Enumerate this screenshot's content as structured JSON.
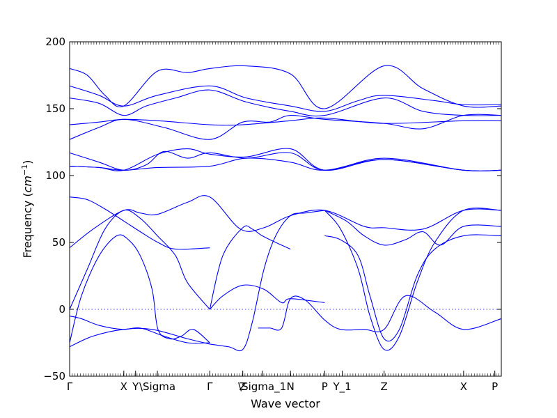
{
  "chart_data": {
    "type": "line",
    "xlabel": "Wave vector",
    "ylabel": "Frequency",
    "ylabel_unit_base": "cm",
    "ylabel_unit_exp": "−1",
    "ylim": [
      -50,
      200
    ],
    "yticks": [
      "−50",
      "0",
      "50",
      "100",
      "150",
      "200"
    ],
    "ytick_values": [
      -50,
      0,
      50,
      100,
      150,
      200
    ],
    "xlim": [
      0,
      7.33
    ],
    "xticks": [
      {
        "label": "Γ",
        "x": 0.0
      },
      {
        "label": "X",
        "x": 0.92
      },
      {
        "label": "Y",
        "x": 1.12
      },
      {
        "label": "\\Sigma",
        "x": 1.49
      },
      {
        "label": "Γ",
        "x": 2.38
      },
      {
        "label": "Z",
        "x": 2.94
      },
      {
        "label": "\\Sigma_1",
        "x": 3.27
      },
      {
        "label": "N",
        "x": 3.75
      },
      {
        "label": "P",
        "x": 4.33
      },
      {
        "label": "Y_1",
        "x": 4.63
      },
      {
        "label": "Z",
        "x": 5.34
      },
      {
        "label": "X",
        "x": 6.69
      },
      {
        "label": "P",
        "x": 7.22
      }
    ],
    "grid": false,
    "reference_line": {
      "y": 0,
      "style": "dotted"
    },
    "line_color": "#0000ff",
    "series": [
      {
        "x": [
          0,
          0.3,
          0.6,
          0.92,
          1.49,
          2.0,
          2.38,
          3.0,
          3.75,
          4.33,
          5.34,
          6.0,
          6.69,
          7.33
        ],
        "y": [
          180,
          175,
          160,
          152,
          178,
          177,
          180,
          182,
          176,
          150,
          182,
          165,
          152,
          152
        ]
      },
      {
        "x": [
          0,
          0.5,
          0.92,
          1.49,
          2.38,
          3.0,
          3.75,
          4.33,
          4.9,
          5.34,
          6.2,
          6.69,
          7.33
        ],
        "y": [
          167,
          160,
          152,
          160,
          167,
          158,
          152,
          148,
          156,
          160,
          156,
          153,
          153
        ]
      },
      {
        "x": [
          0,
          0.5,
          0.92,
          1.3,
          1.8,
          2.38,
          3.0,
          3.75,
          4.33,
          5.34,
          6.0,
          6.69,
          7.33
        ],
        "y": [
          158,
          154,
          145,
          152,
          158,
          164,
          155,
          148,
          145,
          158,
          148,
          145,
          145
        ]
      },
      {
        "x": [
          0,
          0.5,
          0.92,
          1.5,
          2.38,
          2.94,
          3.75,
          4.33,
          5.34,
          6.69,
          7.33
        ],
        "y": [
          138,
          140,
          142,
          141,
          138,
          138,
          141,
          143,
          139,
          141,
          141
        ]
      },
      {
        "x": [
          0,
          0.5,
          0.92,
          1.6,
          2.38,
          2.94,
          3.4,
          3.75,
          4.33,
          5.34,
          6.0,
          6.69,
          7.33
        ],
        "y": [
          127,
          136,
          142,
          136,
          127,
          140,
          140,
          145,
          142,
          139,
          135,
          145,
          145
        ]
      },
      {
        "x": [
          0,
          0.5,
          0.92,
          1.3,
          1.6,
          2.0,
          2.38,
          3.0,
          3.75,
          4.33,
          5.34,
          6.69,
          7.33
        ],
        "y": [
          117,
          110,
          104,
          108,
          118,
          113,
          117,
          113,
          117,
          104,
          113,
          104,
          104
        ]
      },
      {
        "x": [
          0,
          0.5,
          0.92,
          1.5,
          2.0,
          2.38,
          3.0,
          3.75,
          4.33,
          5.34,
          6.69,
          7.33
        ],
        "y": [
          107,
          106,
          104,
          116,
          120,
          116,
          114,
          120,
          104,
          112,
          104,
          104
        ]
      },
      {
        "x": [
          0,
          0.5,
          0.92,
          1.5,
          2.38,
          3.0,
          3.75,
          4.33,
          5.34,
          6.69,
          7.33
        ],
        "y": [
          107,
          106,
          104,
          106,
          107,
          113,
          110,
          104,
          112,
          104,
          104
        ]
      },
      {
        "x": [
          0,
          0.3,
          0.6,
          0.92,
          1.2,
          1.5,
          1.8,
          2.38
        ],
        "y": [
          84,
          82,
          75,
          66,
          58,
          50,
          45,
          46
        ]
      },
      {
        "x": [
          0,
          0.4,
          0.92,
          1.2,
          1.49,
          2.0,
          2.38,
          2.9,
          3.3,
          3.75,
          4.33,
          5.0,
          5.34,
          6.0,
          6.69,
          7.33
        ],
        "y": [
          46,
          60,
          74,
          72,
          71,
          80,
          84,
          60,
          61,
          70,
          74,
          62,
          61,
          60,
          74,
          74
        ]
      },
      {
        "x": [
          0,
          0.3,
          0.6,
          0.92,
          1.2,
          1.49,
          1.8,
          2.0,
          2.38
        ],
        "y": [
          0,
          30,
          60,
          74,
          68,
          55,
          40,
          20,
          0
        ]
      },
      {
        "x": [
          0,
          0.2,
          0.5,
          0.8,
          1.0,
          1.2,
          1.4,
          1.5,
          1.7,
          1.9,
          2.1,
          2.38
        ],
        "y": [
          -25,
          10,
          40,
          55,
          52,
          40,
          15,
          -15,
          -22,
          -20,
          -15,
          -25
        ]
      },
      {
        "x": [
          0,
          0.2,
          0.5,
          0.9,
          1.2,
          1.6,
          2.0,
          2.38
        ],
        "y": [
          -5,
          -7,
          -12,
          -15,
          -14,
          -20,
          -25,
          -25
        ]
      },
      {
        "x": [
          0,
          0.4,
          0.92,
          1.4,
          2.0,
          2.38
        ],
        "y": [
          -28,
          -20,
          -15,
          -15,
          -22,
          -26
        ]
      },
      {
        "x": [
          2.38,
          2.6,
          2.94,
          3.1,
          3.27,
          3.5,
          3.75
        ],
        "y": [
          0,
          40,
          61,
          60,
          55,
          50,
          45
        ]
      },
      {
        "x": [
          2.38,
          2.6,
          2.94,
          3.3,
          3.6,
          3.75,
          4.33
        ],
        "y": [
          0,
          10,
          18,
          15,
          5,
          8,
          5
        ]
      },
      {
        "x": [
          2.38,
          2.7,
          2.94,
          3.1,
          3.3,
          3.5,
          3.75,
          4.0,
          4.33
        ],
        "y": [
          -26,
          -28,
          -30,
          -10,
          30,
          55,
          70,
          72,
          74
        ]
      },
      {
        "x": [
          3.2,
          3.4,
          3.6,
          3.75,
          4.0,
          4.33,
          4.6,
          5.0,
          5.34,
          5.7,
          6.2,
          6.69,
          7.33
        ],
        "y": [
          -14,
          -14,
          -14,
          8,
          7,
          -8,
          -15,
          -15,
          -15,
          10,
          -2,
          -15,
          -7
        ]
      },
      {
        "x": [
          4.33,
          4.6,
          4.9,
          5.1,
          5.34,
          5.6,
          5.9,
          6.2,
          6.69,
          7.33
        ],
        "y": [
          74,
          60,
          30,
          -5,
          -30,
          -20,
          20,
          50,
          74,
          74
        ]
      },
      {
        "x": [
          4.33,
          4.6,
          4.9,
          5.1,
          5.34,
          5.6,
          5.9,
          6.2,
          6.69,
          7.33
        ],
        "y": [
          55,
          52,
          40,
          10,
          -22,
          -15,
          25,
          45,
          55,
          55
        ]
      },
      {
        "x": [
          4.33,
          4.7,
          5.0,
          5.34,
          5.7,
          6.0,
          6.3,
          6.69,
          7.33
        ],
        "y": [
          74,
          66,
          55,
          48,
          52,
          58,
          48,
          62,
          62
        ]
      }
    ]
  }
}
